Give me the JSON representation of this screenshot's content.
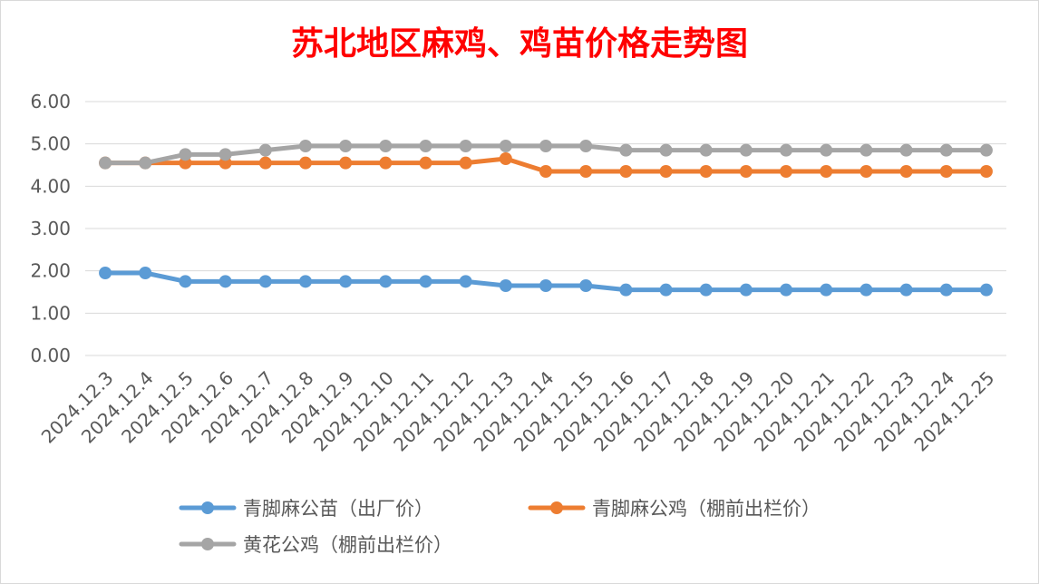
{
  "colors": {
    "title": "#ff0000",
    "gridline": "#d9d9d9",
    "axis_text": "#595959"
  },
  "chart_data": {
    "type": "line",
    "title": "苏北地区麻鸡、鸡苗价格走势图",
    "xlabel": "",
    "ylabel": "",
    "ylim": [
      0,
      6
    ],
    "ytick_step": 1,
    "ytick_decimals": 2,
    "grid": true,
    "legend_position": "bottom",
    "categories": [
      "2024.12.3",
      "2024.12.4",
      "2024.12.5",
      "2024.12.6",
      "2024.12.7",
      "2024.12.8",
      "2024.12.9",
      "2024.12.10",
      "2024.12.11",
      "2024.12.12",
      "2024.12.13",
      "2024.12.14",
      "2024.12.15",
      "2024.12.16",
      "2024.12.17",
      "2024.12.18",
      "2024.12.19",
      "2024.12.20",
      "2024.12.21",
      "2024.12.22",
      "2024.12.23",
      "2024.12.24",
      "2024.12.25"
    ],
    "series": [
      {
        "name": "青脚麻公苗（出厂价）",
        "color": "#5b9bd5",
        "values": [
          1.95,
          1.95,
          1.75,
          1.75,
          1.75,
          1.75,
          1.75,
          1.75,
          1.75,
          1.75,
          1.65,
          1.65,
          1.65,
          1.55,
          1.55,
          1.55,
          1.55,
          1.55,
          1.55,
          1.55,
          1.55,
          1.55,
          1.55
        ]
      },
      {
        "name": "青脚麻公鸡（棚前出栏价）",
        "color": "#ed7d31",
        "values": [
          4.55,
          4.55,
          4.55,
          4.55,
          4.55,
          4.55,
          4.55,
          4.55,
          4.55,
          4.55,
          4.65,
          4.35,
          4.35,
          4.35,
          4.35,
          4.35,
          4.35,
          4.35,
          4.35,
          4.35,
          4.35,
          4.35,
          4.35
        ]
      },
      {
        "name": "黄花公鸡（棚前出栏价）",
        "color": "#a5a5a5",
        "values": [
          4.55,
          4.55,
          4.75,
          4.75,
          4.85,
          4.95,
          4.95,
          4.95,
          4.95,
          4.95,
          4.95,
          4.95,
          4.95,
          4.85,
          4.85,
          4.85,
          4.85,
          4.85,
          4.85,
          4.85,
          4.85,
          4.85,
          4.85
        ]
      }
    ]
  }
}
